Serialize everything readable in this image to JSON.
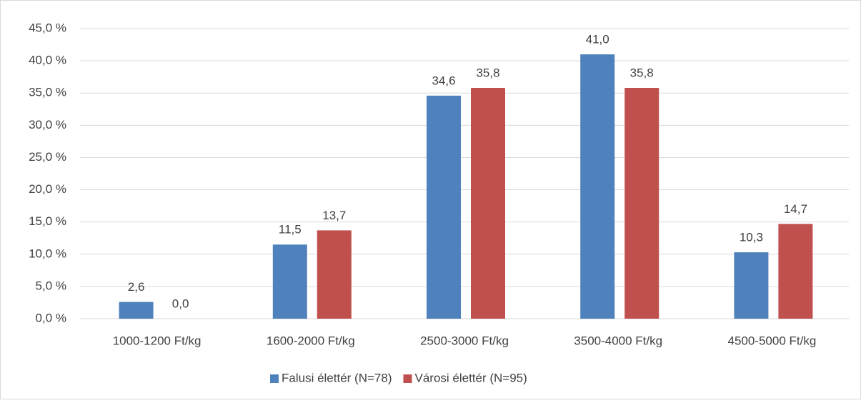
{
  "chart_data": {
    "type": "bar",
    "categories": [
      "1000-1200 Ft/kg",
      "1600-2000 Ft/kg",
      "2500-3000 Ft/kg",
      "3500-4000 Ft/kg",
      "4500-5000 Ft/kg"
    ],
    "series": [
      {
        "name": "Falusi élettér (N=78)",
        "color": "#4f81bd",
        "values": [
          2.6,
          11.5,
          34.6,
          41.0,
          10.3
        ],
        "value_labels": [
          "2,6",
          "11,5",
          "34,6",
          "41,0",
          "10,3"
        ]
      },
      {
        "name": "Városi élettér (N=95)",
        "color": "#c0504d",
        "values": [
          0.0,
          13.7,
          35.8,
          35.8,
          14.7
        ],
        "value_labels": [
          "0,0",
          "13,7",
          "35,8",
          "35,8",
          "14,7"
        ]
      }
    ],
    "ylim": [
      0,
      45
    ],
    "yticks": [
      {
        "value": 0,
        "label": "0,0 %"
      },
      {
        "value": 5,
        "label": "5,0 %"
      },
      {
        "value": 10,
        "label": "10,0 %"
      },
      {
        "value": 15,
        "label": "15,0 %"
      },
      {
        "value": 20,
        "label": "20,0 %"
      },
      {
        "value": 25,
        "label": "25,0 %"
      },
      {
        "value": 30,
        "label": "30,0 %"
      },
      {
        "value": 35,
        "label": "35,0 %"
      },
      {
        "value": 40,
        "label": "40,0 %"
      },
      {
        "value": 45,
        "label": "45,0 %"
      }
    ],
    "grid": true,
    "legend": "bottom"
  }
}
